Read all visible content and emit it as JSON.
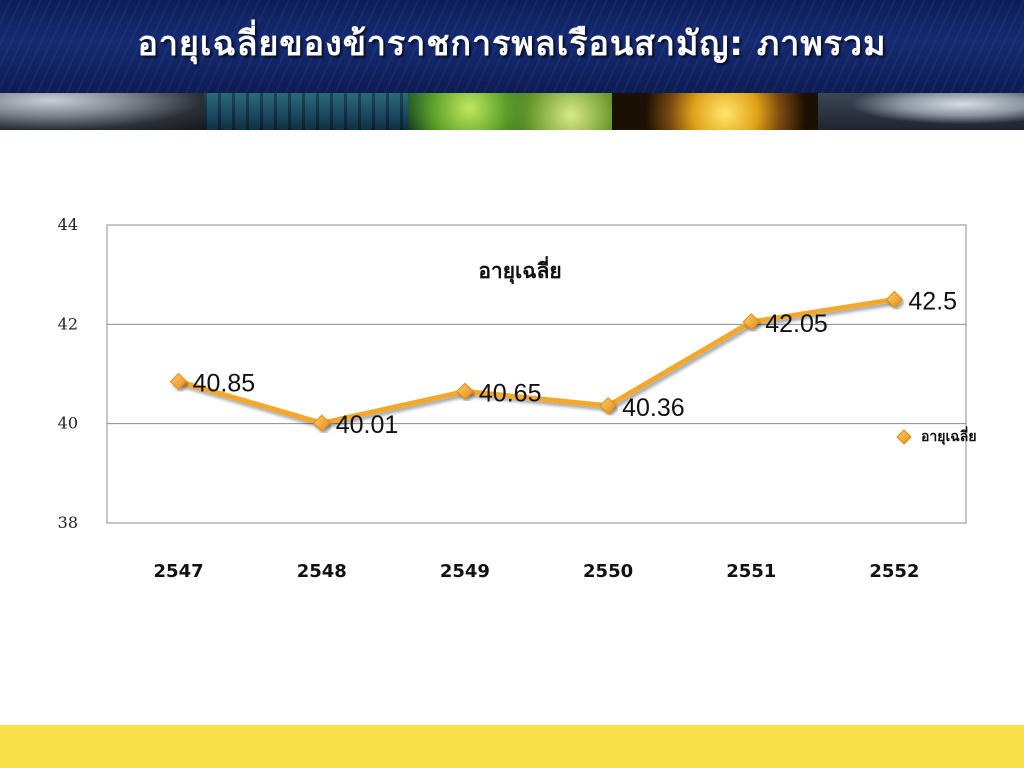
{
  "title": "อายุเฉลี่ยของข้าราชการพลเรือนสามัญ: ภาพรวม",
  "colors": {
    "header_bg": "#142a72",
    "series_line": "#f4a82c",
    "footer": "#f6e14a"
  },
  "chart_data": {
    "type": "line",
    "title": "อายุเฉลี่ย",
    "xlabel": "",
    "ylabel": "",
    "categories": [
      "2547",
      "2548",
      "2549",
      "2550",
      "2551",
      "2552"
    ],
    "series": [
      {
        "name": "อายุเฉลี่ย",
        "values": [
          40.85,
          40.01,
          40.65,
          40.36,
          42.05,
          42.5
        ],
        "color": "#f4a82c"
      }
    ],
    "data_labels": [
      "40.85",
      "40.01",
      "40.65",
      "40.36",
      "42.05",
      "42.5"
    ],
    "ylim": [
      38,
      44
    ],
    "y_ticks": [
      "38",
      "40",
      "42",
      "44"
    ],
    "grid": true,
    "legend": "right"
  }
}
